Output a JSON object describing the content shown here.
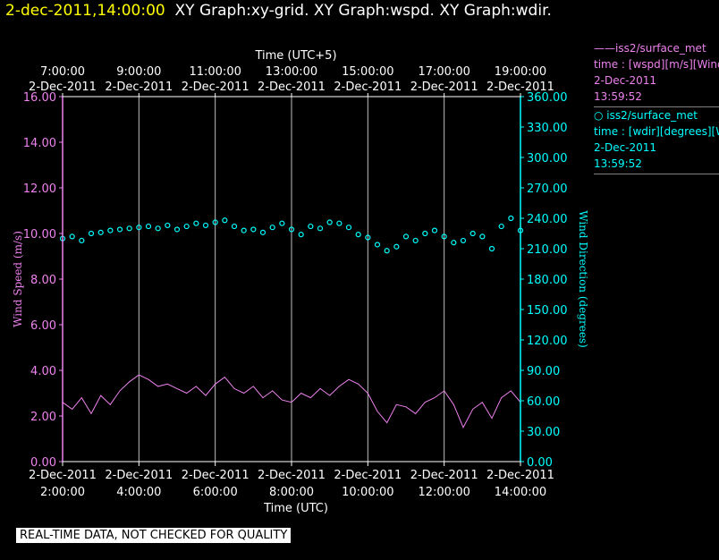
{
  "window": {
    "title_date": "2-dec-2011,14:00:00",
    "title_rest": "XY Graph:xy-grid.  XY Graph:wspd.  XY Graph:wdir."
  },
  "legend": {
    "series1": {
      "name": "——iss2/surface_met",
      "line2": "time : [wspd][m/s][Wind",
      "line3": "2-Dec-2011",
      "line4": "13:59:52",
      "color": "#ee82ee"
    },
    "series2": {
      "name": "○ iss2/surface_met",
      "line2": "time : [wdir][degrees][W",
      "line3": "2-Dec-2011",
      "line4": "13:59:52",
      "color": "#00ffff"
    }
  },
  "footer": {
    "note": "REAL-TIME DATA, NOT CHECKED FOR QUALITY"
  },
  "chart_data": {
    "type": "line",
    "top_axis_title": "Time (UTC+5)",
    "bottom_axis_title": "Time (UTC)",
    "left_axis_title": "Wind Speed (m/s)",
    "right_axis_title": "Wind Direction (degrees)",
    "x_range": [
      2.0,
      14.0
    ],
    "bottom_ticks": [
      {
        "x": 2,
        "date": "2-Dec-2011",
        "time": "2:00:00"
      },
      {
        "x": 4,
        "date": "2-Dec-2011",
        "time": "4:00:00"
      },
      {
        "x": 6,
        "date": "2-Dec-2011",
        "time": "6:00:00"
      },
      {
        "x": 8,
        "date": "2-Dec-2011",
        "time": "8:00:00"
      },
      {
        "x": 10,
        "date": "2-Dec-2011",
        "time": "10:00:00"
      },
      {
        "x": 12,
        "date": "2-Dec-2011",
        "time": "12:00:00"
      },
      {
        "x": 14,
        "date": "2-Dec-2011",
        "time": "14:00:00"
      }
    ],
    "top_ticks": [
      {
        "x": 2,
        "time": "7:00:00",
        "date": "2-Dec-2011"
      },
      {
        "x": 4,
        "time": "9:00:00",
        "date": "2-Dec-2011"
      },
      {
        "x": 6,
        "time": "11:00:00",
        "date": "2-Dec-2011"
      },
      {
        "x": 8,
        "time": "13:00:00",
        "date": "2-Dec-2011"
      },
      {
        "x": 10,
        "time": "15:00:00",
        "date": "2-Dec-2011"
      },
      {
        "x": 12,
        "time": "17:00:00",
        "date": "2-Dec-2011"
      },
      {
        "x": 14,
        "time": "19:00:00",
        "date": "2-Dec-2011"
      }
    ],
    "left_axis": {
      "min": 0,
      "max": 16,
      "ticks": [
        "0.00",
        "2.00",
        "4.00",
        "6.00",
        "8.00",
        "10.00",
        "12.00",
        "14.00",
        "16.00"
      ],
      "color": "#ee82ee"
    },
    "right_axis": {
      "min": 0,
      "max": 360,
      "ticks": [
        "0.00",
        "30.00",
        "60.00",
        "90.00",
        "120.00",
        "150.00",
        "180.00",
        "210.00",
        "240.00",
        "270.00",
        "300.00",
        "330.00",
        "360.00"
      ],
      "color": "#00ffff"
    },
    "grid": "vertical lines at each 2-hour tick",
    "series": [
      {
        "axis": "left",
        "style": "line",
        "color": "#ee82ee",
        "x": [
          2.0,
          2.25,
          2.5,
          2.75,
          3.0,
          3.25,
          3.5,
          3.75,
          4.0,
          4.25,
          4.5,
          4.75,
          5.0,
          5.25,
          5.5,
          5.75,
          6.0,
          6.25,
          6.5,
          6.75,
          7.0,
          7.25,
          7.5,
          7.75,
          8.0,
          8.25,
          8.5,
          8.75,
          9.0,
          9.25,
          9.5,
          9.75,
          10.0,
          10.25,
          10.5,
          10.75,
          11.0,
          11.25,
          11.5,
          11.75,
          12.0,
          12.25,
          12.5,
          12.75,
          13.0,
          13.25,
          13.5,
          13.75,
          14.0
        ],
        "values": [
          2.6,
          2.3,
          2.8,
          2.1,
          2.9,
          2.5,
          3.1,
          3.5,
          3.8,
          3.6,
          3.3,
          3.4,
          3.2,
          3.0,
          3.3,
          2.9,
          3.4,
          3.7,
          3.2,
          3.0,
          3.3,
          2.8,
          3.1,
          2.7,
          2.6,
          3.0,
          2.8,
          3.2,
          2.9,
          3.3,
          3.6,
          3.4,
          3.0,
          2.2,
          1.7,
          2.5,
          2.4,
          2.1,
          2.6,
          2.8,
          3.1,
          2.5,
          1.5,
          2.3,
          2.6,
          1.9,
          2.8,
          3.1,
          2.6
        ]
      },
      {
        "axis": "right",
        "style": "scatter",
        "color": "#00ffff",
        "x": [
          2.0,
          2.25,
          2.5,
          2.75,
          3.0,
          3.25,
          3.5,
          3.75,
          4.0,
          4.25,
          4.5,
          4.75,
          5.0,
          5.25,
          5.5,
          5.75,
          6.0,
          6.25,
          6.5,
          6.75,
          7.0,
          7.25,
          7.5,
          7.75,
          8.0,
          8.25,
          8.5,
          8.75,
          9.0,
          9.25,
          9.5,
          9.75,
          10.0,
          10.25,
          10.5,
          10.75,
          11.0,
          11.25,
          11.5,
          11.75,
          12.0,
          12.25,
          12.5,
          12.75,
          13.0,
          13.25,
          13.5,
          13.75,
          14.0
        ],
        "values": [
          220,
          222,
          218,
          225,
          226,
          228,
          229,
          230,
          231,
          232,
          230,
          233,
          229,
          232,
          235,
          233,
          236,
          238,
          232,
          228,
          229,
          226,
          231,
          235,
          229,
          224,
          232,
          230,
          236,
          235,
          231,
          224,
          221,
          214,
          208,
          212,
          222,
          218,
          225,
          228,
          222,
          216,
          218,
          225,
          222,
          210,
          232,
          240,
          228
        ]
      }
    ]
  }
}
